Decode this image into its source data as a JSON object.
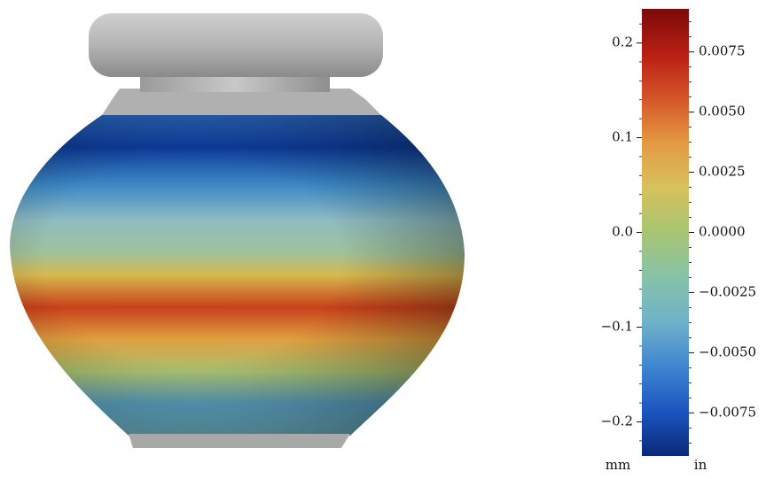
{
  "chart_data": {
    "type": "colorbar",
    "ylabel": "mm",
    "y2label": "in",
    "ylim": [
      -0.236,
      0.236
    ],
    "yticks": [
      {
        "value": -0.2,
        "label": "−0.2"
      },
      {
        "value": -0.1,
        "label": "−0.1"
      },
      {
        "value": 0,
        "label": "0.0"
      },
      0.1,
      0.2
    ],
    "yminorticks": [
      -0.22,
      -0.18,
      -0.16,
      -0.14,
      -0.12,
      -0.08,
      -0.06,
      -0.04,
      -0.02,
      0.02,
      0.04,
      0.06,
      0.08,
      0.12,
      0.14,
      0.16,
      0.18,
      0.22
    ],
    "y2lim": [
      -0.00929,
      0.00929
    ],
    "y2ticks": [
      {
        "value": -0.0075,
        "label": "−0.0075"
      },
      {
        "value": -0.005,
        "label": "−0.0050"
      },
      {
        "value": -0.0025,
        "label": "−0.0025"
      },
      {
        "value": 0,
        "label": "0.0000"
      },
      {
        "value": 0.0025,
        "label": "0.0025"
      },
      {
        "value": 0.005,
        "label": "0.0050"
      },
      {
        "value": 0.0075,
        "label": "0.0075"
      }
    ],
    "y2minorticks": [
      -0.00875,
      -0.008125,
      -0.006875,
      -0.00625,
      -0.005625,
      -0.004375,
      -0.00375,
      -0.003125,
      -0.001875,
      -0.00125,
      -0.000625,
      0.000625,
      0.00125,
      0.001875,
      0.003125,
      0.00375,
      0.004375,
      0.005625,
      0.00625,
      0.006875,
      0.008125,
      0.00875
    ],
    "colormap": [
      "#0a2878",
      "#1c55c0",
      "#3f86d0",
      "#6fb2c8",
      "#86c2a8",
      "#a8c472",
      "#d6c25e",
      "#e39a42",
      "#d5542a",
      "#b81e12",
      "#7a0a0a"
    ]
  }
}
